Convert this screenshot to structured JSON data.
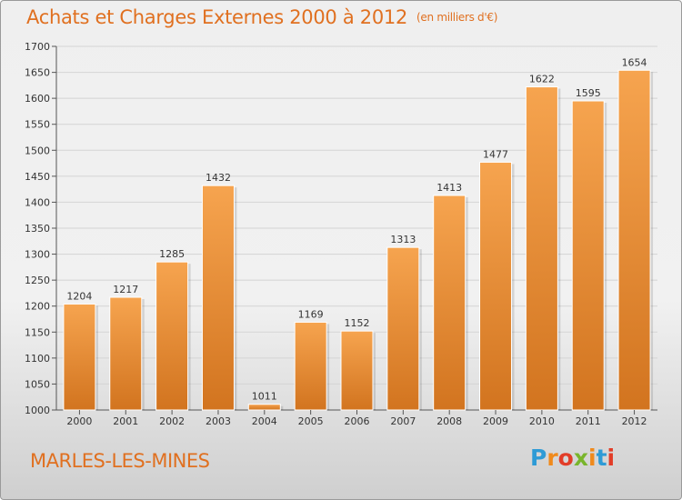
{
  "header": {
    "title": "Achats et Charges Externes 2000 à 2012",
    "unit": "(en milliers d'€)"
  },
  "footer": {
    "city": "MARLES-LES-MINES",
    "brand_letters": [
      "P",
      "r",
      "o",
      "x",
      "i",
      "t",
      "i"
    ],
    "brand_colors": [
      "#2e9bd6",
      "#f08a1c",
      "#e23d28",
      "#79b52c",
      "#f08a1c",
      "#2e9bd6",
      "#e23d28"
    ]
  },
  "colors": {
    "bar_light": "#f6a44f",
    "bar_dark": "#d2741f",
    "accent": "#e07020",
    "grid": "#d4d4d4"
  },
  "chart_data": {
    "type": "bar",
    "title": "Achats et Charges Externes 2000 à 2012",
    "subtitle": "(en milliers d'€)",
    "xlabel": "",
    "ylabel": "",
    "categories": [
      "2000",
      "2001",
      "2002",
      "2003",
      "2004",
      "2005",
      "2006",
      "2007",
      "2008",
      "2009",
      "2010",
      "2011",
      "2012"
    ],
    "values": [
      1204,
      1217,
      1285,
      1432,
      1011,
      1169,
      1152,
      1313,
      1413,
      1477,
      1622,
      1595,
      1654
    ],
    "ylim": [
      1000,
      1700
    ],
    "yticks": [
      1000,
      1050,
      1100,
      1150,
      1200,
      1250,
      1300,
      1350,
      1400,
      1450,
      1500,
      1550,
      1600,
      1650,
      1700
    ],
    "grid": true,
    "data_labels": true,
    "legend": "none"
  }
}
